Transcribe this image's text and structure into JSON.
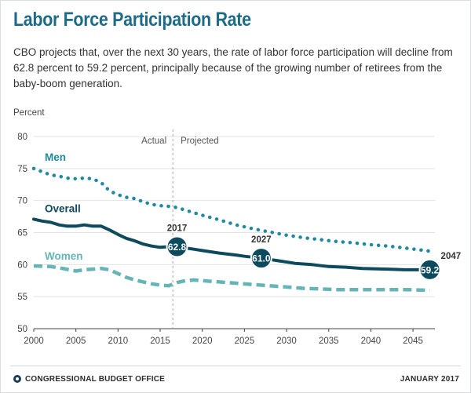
{
  "header": {
    "title": "Labor Force Participation Rate",
    "subtitle": "CBO projects that, over the next 30 years, the rate of labor force participation will decline from 62.8 percent to 59.2 percent, principally because of the growing number of retirees from the baby-boom generation."
  },
  "footer": {
    "organization": "CONGRESSIONAL BUDGET OFFICE",
    "date": "JANUARY 2017"
  },
  "colors": {
    "men": "#1f8a9c",
    "overall": "#0d4a5e",
    "women": "#66b5b6",
    "title": "#1e6b88"
  },
  "chart_data": {
    "type": "line",
    "ylabel": "Percent",
    "xlabel": "",
    "xlim": [
      2000,
      2047.6
    ],
    "ylim": [
      50,
      80
    ],
    "x_ticks": [
      2000,
      2005,
      2010,
      2015,
      2020,
      2025,
      2030,
      2035,
      2040,
      2045
    ],
    "y_ticks": [
      50,
      55,
      60,
      65,
      70,
      75,
      80
    ],
    "grid": "horizontal",
    "divider": {
      "x": 2016.5,
      "left_label": "Actual",
      "right_label": "Projected"
    },
    "series": [
      {
        "name": "Men",
        "style": "dotted",
        "points": [
          [
            2000,
            75
          ],
          [
            2001,
            74.5
          ],
          [
            2002,
            74
          ],
          [
            2003,
            73.8
          ],
          [
            2004,
            73.5
          ],
          [
            2005,
            73.4
          ],
          [
            2006,
            73.5
          ],
          [
            2007,
            73.4
          ],
          [
            2008,
            72.8
          ],
          [
            2009,
            71.5
          ],
          [
            2010,
            70.9
          ],
          [
            2011,
            70.5
          ],
          [
            2012,
            70.3
          ],
          [
            2013,
            69.8
          ],
          [
            2014,
            69.4
          ],
          [
            2015,
            69.2
          ],
          [
            2016,
            69.1
          ],
          [
            2017,
            68.9
          ],
          [
            2018,
            68.5
          ],
          [
            2019,
            68.1
          ],
          [
            2020,
            67.7
          ],
          [
            2022,
            67
          ],
          [
            2024,
            66.2
          ],
          [
            2026,
            65.6
          ],
          [
            2028,
            65.1
          ],
          [
            2030,
            64.6
          ],
          [
            2032,
            64.2
          ],
          [
            2034,
            63.9
          ],
          [
            2036,
            63.6
          ],
          [
            2038,
            63.4
          ],
          [
            2040,
            63.1
          ],
          [
            2042,
            62.9
          ],
          [
            2044,
            62.6
          ],
          [
            2047,
            62.1
          ]
        ]
      },
      {
        "name": "Overall",
        "style": "solid",
        "points": [
          [
            2000,
            67.1
          ],
          [
            2001,
            66.8
          ],
          [
            2002,
            66.6
          ],
          [
            2003,
            66.2
          ],
          [
            2004,
            66
          ],
          [
            2005,
            66
          ],
          [
            2006,
            66.2
          ],
          [
            2007,
            66
          ],
          [
            2008,
            66
          ],
          [
            2009,
            65.4
          ],
          [
            2010,
            64.7
          ],
          [
            2011,
            64.1
          ],
          [
            2012,
            63.7
          ],
          [
            2013,
            63.2
          ],
          [
            2014,
            62.9
          ],
          [
            2015,
            62.7
          ],
          [
            2016,
            62.8
          ],
          [
            2017,
            62.8
          ],
          [
            2018,
            62.6
          ],
          [
            2019,
            62.4
          ],
          [
            2020,
            62.2
          ],
          [
            2022,
            61.8
          ],
          [
            2024,
            61.5
          ],
          [
            2025,
            61.3
          ],
          [
            2027,
            61
          ],
          [
            2029,
            60.6
          ],
          [
            2031,
            60.2
          ],
          [
            2033,
            60
          ],
          [
            2035,
            59.7
          ],
          [
            2037,
            59.6
          ],
          [
            2039,
            59.4
          ],
          [
            2042,
            59.3
          ],
          [
            2044,
            59.2
          ],
          [
            2047,
            59.2
          ]
        ]
      },
      {
        "name": "Women",
        "style": "dashed",
        "points": [
          [
            2000,
            59.8
          ],
          [
            2002,
            59.7
          ],
          [
            2003,
            59.5
          ],
          [
            2005,
            59
          ],
          [
            2006,
            59.2
          ],
          [
            2007,
            59.3
          ],
          [
            2008,
            59.4
          ],
          [
            2009,
            59.2
          ],
          [
            2010,
            58.6
          ],
          [
            2011,
            58
          ],
          [
            2012,
            57.6
          ],
          [
            2013,
            57.3
          ],
          [
            2014,
            57
          ],
          [
            2015,
            56.8
          ],
          [
            2016,
            56.7
          ],
          [
            2017,
            57.2
          ],
          [
            2018,
            57.5
          ],
          [
            2019,
            57.6
          ],
          [
            2020,
            57.5
          ],
          [
            2022,
            57.3
          ],
          [
            2024,
            57.1
          ],
          [
            2026,
            56.9
          ],
          [
            2028,
            56.7
          ],
          [
            2030,
            56.5
          ],
          [
            2032,
            56.3
          ],
          [
            2034,
            56.2
          ],
          [
            2036,
            56.1
          ],
          [
            2040,
            56.1
          ],
          [
            2044,
            56.1
          ],
          [
            2047,
            56
          ]
        ]
      }
    ],
    "series_labels": [
      {
        "series": "Men",
        "text": "Men",
        "x": 2001.3,
        "y": 76.2
      },
      {
        "series": "Overall",
        "text": "Overall",
        "x": 2001.3,
        "y": 68.2
      },
      {
        "series": "Women",
        "text": "Women",
        "x": 2001.3,
        "y": 60.8
      }
    ],
    "annotations": [
      {
        "year_label": "2017",
        "x": 2017,
        "y": 62.8,
        "value": "62.8"
      },
      {
        "year_label": "2027",
        "x": 2027,
        "y": 61.0,
        "value": "61.0"
      },
      {
        "year_label": "2047",
        "x": 2047,
        "y": 59.2,
        "value": "59.2"
      }
    ]
  }
}
